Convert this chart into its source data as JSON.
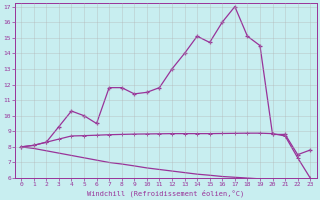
{
  "xlabel": "Windchill (Refroidissement éolien,°C)",
  "background_color": "#c8eef0",
  "line_color": "#993399",
  "grid_color": "#b0b0b0",
  "xlim": [
    -0.5,
    23.5
  ],
  "ylim": [
    6,
    17.2
  ],
  "yticks": [
    6,
    7,
    8,
    9,
    10,
    11,
    12,
    13,
    14,
    15,
    16,
    17
  ],
  "xticks": [
    0,
    1,
    2,
    3,
    4,
    5,
    6,
    7,
    8,
    9,
    10,
    11,
    12,
    13,
    14,
    15,
    16,
    17,
    18,
    19,
    20,
    21,
    22,
    23
  ],
  "series1_x": [
    0,
    1,
    2,
    3,
    4,
    5,
    6,
    7,
    8,
    9,
    10,
    11,
    12,
    13,
    14,
    15,
    16,
    17,
    18,
    19,
    20,
    21,
    22,
    23
  ],
  "series1_y": [
    8.0,
    8.1,
    8.3,
    9.3,
    10.3,
    10.0,
    9.5,
    11.8,
    11.8,
    11.4,
    11.5,
    11.8,
    13.0,
    14.0,
    15.1,
    14.7,
    16.0,
    17.0,
    15.1,
    14.5,
    8.8,
    8.8,
    7.5,
    7.8
  ],
  "series2_x": [
    0,
    1,
    2,
    3,
    4,
    5,
    6,
    7,
    8,
    9,
    10,
    11,
    12,
    13,
    14,
    15,
    16,
    17,
    18,
    19,
    20,
    21,
    22,
    23
  ],
  "series2_y": [
    8.0,
    8.1,
    8.3,
    8.5,
    8.7,
    8.72,
    8.75,
    8.78,
    8.8,
    8.82,
    8.83,
    8.84,
    8.85,
    8.85,
    8.85,
    8.85,
    8.86,
    8.87,
    8.88,
    8.88,
    8.85,
    8.7,
    7.3,
    6.0
  ],
  "series3_x": [
    0,
    1,
    2,
    3,
    4,
    5,
    6,
    7,
    8,
    9,
    10,
    11,
    12,
    13,
    14,
    15,
    16,
    17,
    18,
    19,
    20,
    21,
    22,
    23
  ],
  "series3_y": [
    8.0,
    7.9,
    7.75,
    7.6,
    7.45,
    7.3,
    7.15,
    7.0,
    6.9,
    6.78,
    6.65,
    6.55,
    6.45,
    6.35,
    6.25,
    6.18,
    6.1,
    6.05,
    6.0,
    5.95,
    5.9,
    5.85,
    5.75,
    5.65
  ]
}
